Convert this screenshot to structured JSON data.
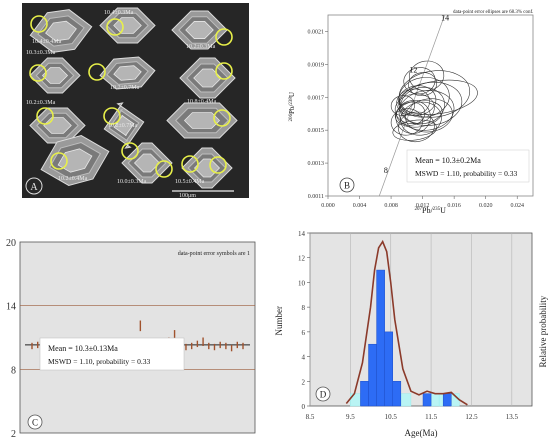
{
  "panelA": {
    "letter": "A",
    "scale_label": "100μm",
    "labels": [
      "10.4±0.3Ma",
      "10.4±0.4Ma",
      "10.3±0.3Ma",
      "10.2±0.3Ma",
      "10.2±0.7Ma",
      "10.2±0.3Ma",
      "10.2±0.7Ma",
      "10.8±0.4Ma",
      "10.2±0.4Ma",
      "10.0±0.3Ma",
      "10.5±0.4Ma"
    ]
  },
  "panelB": {
    "letter": "B",
    "note": "data-point error ellipses are 68.3% conf.",
    "ylabel_parts": [
      "206",
      "Pb/",
      "238",
      "U"
    ],
    "xlabel_parts": [
      "207",
      "Pb/",
      "235",
      "U"
    ],
    "mean_text": "Mean = 10.3±0.2Ma",
    "mswd_text": "MSWD = 1.10, probability = 0.33",
    "concordia_ages": [
      "8",
      "12",
      "14"
    ]
  },
  "panelC": {
    "letter": "C",
    "note": "data-point error symbols are 1",
    "mean_text": "Mean = 10.3±0.13Ma",
    "mswd_text": "MSWD = 1.10, probability = 0.33"
  },
  "panelD": {
    "letter": "D",
    "ylabel": "Number",
    "xlabel": "Age(Ma)",
    "right_label": "Relative probability"
  },
  "chart_data": [
    {
      "type": "scatter",
      "panel": "B",
      "title": "",
      "xlabel": "207Pb/235U",
      "ylabel": "206Pb/238U",
      "xlim": [
        0.0,
        0.026
      ],
      "ylim": [
        0.0011,
        0.0022
      ],
      "x_ticks": [
        "0.000",
        "0.004",
        "0.008",
        "0.012",
        "0.016",
        "0.020",
        "0.024"
      ],
      "y_ticks": [
        "0.0011",
        "0.0013",
        "0.0015",
        "0.0017",
        "0.0019",
        "0.0021"
      ],
      "concordia": {
        "ages_Ma": [
          8,
          12,
          14
        ],
        "x": [
          0.0081,
          0.0121,
          0.0141
        ],
        "y": [
          0.00124,
          0.00187,
          0.00218
        ]
      },
      "ellipses": [
        {
          "x": 0.011,
          "y": 0.00163,
          "rx": 0.0025,
          "ry": 9e-05
        },
        {
          "x": 0.0115,
          "y": 0.0016,
          "rx": 0.003,
          "ry": 8e-05
        },
        {
          "x": 0.0108,
          "y": 0.00158,
          "rx": 0.0022,
          "ry": 0.0001
        },
        {
          "x": 0.012,
          "y": 0.00165,
          "rx": 0.0028,
          "ry": 0.00011
        },
        {
          "x": 0.01,
          "y": 0.00155,
          "rx": 0.002,
          "ry": 8e-05
        },
        {
          "x": 0.0125,
          "y": 0.00162,
          "rx": 0.0035,
          "ry": 0.00012
        },
        {
          "x": 0.0113,
          "y": 0.00168,
          "rx": 0.0024,
          "ry": 9e-05
        },
        {
          "x": 0.0105,
          "y": 0.0016,
          "rx": 0.0018,
          "ry": 7e-05
        },
        {
          "x": 0.0118,
          "y": 0.00157,
          "rx": 0.0026,
          "ry": 0.0001
        },
        {
          "x": 0.013,
          "y": 0.00166,
          "rx": 0.004,
          "ry": 0.00013
        },
        {
          "x": 0.0122,
          "y": 0.0017,
          "rx": 0.0032,
          "ry": 0.00012
        },
        {
          "x": 0.0112,
          "y": 0.00152,
          "rx": 0.0023,
          "ry": 9e-05
        },
        {
          "x": 0.0108,
          "y": 0.00167,
          "rx": 0.0021,
          "ry": 8e-05
        },
        {
          "x": 0.0128,
          "y": 0.00159,
          "rx": 0.003,
          "ry": 0.0001
        },
        {
          "x": 0.0135,
          "y": 0.00172,
          "rx": 0.0045,
          "ry": 0.00014
        },
        {
          "x": 0.014,
          "y": 0.0017,
          "rx": 0.005,
          "ry": 0.0001
        },
        {
          "x": 0.0116,
          "y": 0.0018,
          "rx": 0.002,
          "ry": 8e-05
        },
        {
          "x": 0.0125,
          "y": 0.00183,
          "rx": 0.0022,
          "ry": 9e-05
        },
        {
          "x": 0.012,
          "y": 0.00178,
          "rx": 0.0018,
          "ry": 7e-05
        },
        {
          "x": 0.0095,
          "y": 0.00165,
          "rx": 0.0015,
          "ry": 6e-05
        },
        {
          "x": 0.011,
          "y": 0.0015,
          "rx": 0.0028,
          "ry": 6e-05
        }
      ]
    },
    {
      "type": "scatter",
      "panel": "C",
      "title": "",
      "ylim": [
        2,
        20
      ],
      "y_ticks": [
        "2",
        "8",
        "14",
        "20"
      ],
      "mean": 10.3,
      "reference_lines": [
        14,
        8
      ],
      "values": [
        10.2,
        10.3,
        10.1,
        10.4,
        10.3,
        10.2,
        10.0,
        10.3,
        10.4,
        10.2,
        10.1,
        10.3,
        10.2,
        10.4,
        10.3,
        10.1,
        10.2,
        10.0,
        10.3,
        12.1,
        10.2,
        10.1,
        9.9,
        10.2,
        10.5,
        11.2,
        10.3,
        10.1,
        10.2,
        10.4,
        10.6,
        10.2,
        10.1,
        10.3,
        10.2,
        10.0,
        10.3,
        10.2
      ],
      "errors": [
        0.3,
        0.3,
        0.3,
        0.3,
        0.4,
        0.3,
        0.3,
        0.3,
        0.3,
        0.4,
        0.3,
        0.3,
        0.3,
        0.3,
        0.3,
        0.3,
        0.3,
        0.3,
        0.3,
        0.5,
        0.3,
        0.3,
        0.4,
        0.3,
        0.5,
        0.5,
        0.3,
        0.3,
        0.3,
        0.3,
        0.4,
        0.3,
        0.3,
        0.3,
        0.3,
        0.3,
        0.3,
        0.3
      ]
    },
    {
      "type": "bar",
      "panel": "D",
      "title": "",
      "xlabel": "Age(Ma)",
      "ylabel": "Number",
      "xlim": [
        8.5,
        14.0
      ],
      "ylim": [
        0,
        14
      ],
      "x_ticks": [
        "8.5",
        "9.5",
        "10.5",
        "11.5",
        "12.5",
        "13.5"
      ],
      "y_ticks": [
        "0",
        "2",
        "4",
        "6",
        "8",
        "10",
        "12",
        "14"
      ],
      "bins": [
        {
          "x0": 9.75,
          "x1": 9.95,
          "count": 2
        },
        {
          "x0": 9.95,
          "x1": 10.15,
          "count": 5
        },
        {
          "x0": 10.15,
          "x1": 10.35,
          "count": 11
        },
        {
          "x0": 10.35,
          "x1": 10.55,
          "count": 6
        },
        {
          "x0": 10.55,
          "x1": 10.75,
          "count": 2
        },
        {
          "x0": 11.3,
          "x1": 11.5,
          "count": 1
        },
        {
          "x0": 11.8,
          "x1": 12.0,
          "count": 1
        }
      ],
      "outline_bins": [
        {
          "x0": 9.5,
          "x1": 9.75,
          "count": 1
        },
        {
          "x0": 10.75,
          "x1": 11.0,
          "count": 1
        },
        {
          "x0": 11.5,
          "x1": 11.7,
          "count": 1
        },
        {
          "x0": 11.7,
          "x1": 11.8,
          "count": 1
        },
        {
          "x0": 12.0,
          "x1": 12.2,
          "count": 1
        }
      ],
      "probability_curve": {
        "x": [
          9.4,
          9.6,
          9.8,
          10.0,
          10.1,
          10.2,
          10.3,
          10.4,
          10.5,
          10.6,
          10.8,
          11.0,
          11.2,
          11.4,
          11.6,
          11.8,
          12.0,
          12.2,
          12.4
        ],
        "y": [
          0.2,
          1.0,
          3.5,
          8.0,
          11.0,
          12.8,
          13.3,
          12.5,
          10.0,
          7.0,
          3.0,
          1.2,
          0.9,
          1.2,
          1.0,
          1.0,
          1.1,
          0.5,
          0.1
        ]
      }
    }
  ]
}
